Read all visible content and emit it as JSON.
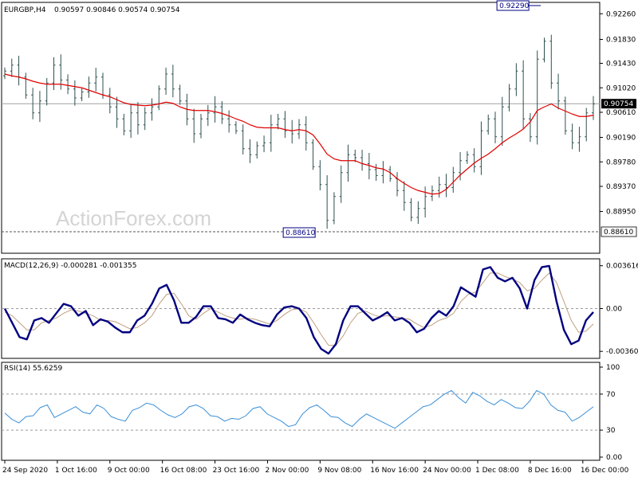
{
  "header": {
    "symbol": "EURGBP,H4",
    "ohlc": "0.90597 0.90846 0.90574 0.90754"
  },
  "watermark": "ActionForex.com",
  "colors": {
    "candle": "#2f4f4f",
    "ma": "#e00000",
    "macd": "#000080",
    "signal": "#c0a080",
    "rsi": "#3a8fd8",
    "guide": "#555555"
  },
  "chart_data": [
    {
      "type": "ohlc",
      "title": "EURGBP,H4",
      "subtitle": "0.90597 0.90846 0.90574 0.90754",
      "ylim": [
        0.8825,
        0.9245
      ],
      "y_ticks": [
        "0.92260",
        "0.91830",
        "0.91430",
        "0.91020",
        "0.90610",
        "0.90190",
        "0.89780",
        "0.89370",
        "0.88950"
      ],
      "y_tick_values": [
        0.9226,
        0.9183,
        0.9143,
        0.9102,
        0.9061,
        0.9019,
        0.8978,
        0.8937,
        0.8895
      ],
      "current_price": "0.90754",
      "current_price_value": 0.90754,
      "low_line": "0.88610",
      "low_line_value": 0.8861,
      "annotations": [
        {
          "text": "0.92290",
          "x_index": 76.5,
          "value": 0.9229
        },
        {
          "text": "0.88610",
          "x_index": 46,
          "value": 0.8861
        }
      ],
      "x_ticks": [
        "24 Sep 2020",
        "1 Oct 16:00",
        "9 Oct 00:00",
        "16 Oct 08:00",
        "23 Oct 16:00",
        "2 Nov 00:00",
        "9 Nov 08:00",
        "16 Nov 16:00",
        "24 Nov 00:00",
        "1 Dec 08:00",
        "8 Dec 16:00",
        "16 Dec 00:00"
      ],
      "x_tick_index": [
        0,
        7.5,
        15,
        22.5,
        30,
        37.5,
        45,
        52.5,
        60,
        67.5,
        75,
        82.5
      ],
      "close": [
        0.913,
        0.914,
        0.912,
        0.909,
        0.906,
        0.908,
        0.911,
        0.914,
        0.9115,
        0.91,
        0.9085,
        0.9095,
        0.911,
        0.912,
        0.909,
        0.907,
        0.905,
        0.903,
        0.906,
        0.904,
        0.906,
        0.907,
        0.91,
        0.9125,
        0.91,
        0.908,
        0.905,
        0.9025,
        0.905,
        0.906,
        0.907,
        0.905,
        0.904,
        0.903,
        0.9,
        0.899,
        0.9005,
        0.901,
        0.904,
        0.905,
        0.903,
        0.9025,
        0.904,
        0.901,
        0.897,
        0.894,
        0.888,
        0.892,
        0.896,
        0.899,
        0.8985,
        0.8975,
        0.8965,
        0.8955,
        0.8965,
        0.895,
        0.893,
        0.891,
        0.8885,
        0.89,
        0.892,
        0.893,
        0.894,
        0.8935,
        0.896,
        0.898,
        0.899,
        0.897,
        0.903,
        0.905,
        0.902,
        0.907,
        0.91,
        0.913,
        0.905,
        0.902,
        0.915,
        0.918,
        0.911,
        0.908,
        0.903,
        0.901,
        0.902,
        0.906,
        0.9075
      ],
      "ma": [
        0.9125,
        0.9122,
        0.912,
        0.9117,
        0.9113,
        0.911,
        0.9108,
        0.9108,
        0.9108,
        0.9106,
        0.9104,
        0.9102,
        0.9098,
        0.9094,
        0.909,
        0.9087,
        0.9082,
        0.9077,
        0.9074,
        0.9073,
        0.9072,
        0.9073,
        0.9075,
        0.9078,
        0.9076,
        0.907,
        0.9066,
        0.9064,
        0.9064,
        0.9064,
        0.9062,
        0.9059,
        0.9055,
        0.905,
        0.9046,
        0.904,
        0.9036,
        0.9035,
        0.9035,
        0.9035,
        0.9032,
        0.903,
        0.9032,
        0.903,
        0.9023,
        0.9008,
        0.8991,
        0.8983,
        0.898,
        0.898,
        0.898,
        0.8975,
        0.8972,
        0.8968,
        0.8966,
        0.896,
        0.895,
        0.8942,
        0.8935,
        0.893,
        0.8927,
        0.8924,
        0.8925,
        0.8932,
        0.8944,
        0.8956,
        0.8966,
        0.8976,
        0.8984,
        0.8991,
        0.9,
        0.901,
        0.9018,
        0.9025,
        0.9033,
        0.9045,
        0.9064,
        0.907,
        0.9075,
        0.9068,
        0.9063,
        0.9058,
        0.9054,
        0.9054,
        0.9056
      ]
    },
    {
      "type": "line",
      "title": "MACD(12,26,9) -0.000281 -0.001355",
      "ylim": [
        -0.0042,
        0.0042
      ],
      "y_ticks": [
        "0.003616",
        "0.00",
        "-0.003609"
      ],
      "y_tick_values": [
        0.003616,
        0.0,
        -0.003609
      ],
      "series": [
        {
          "name": "MACD",
          "values": [
            0.0,
            -0.0012,
            -0.0024,
            -0.0026,
            -0.001,
            -0.0008,
            -0.0012,
            -0.0004,
            0.0004,
            0.0002,
            -0.0006,
            -0.0002,
            -0.0014,
            -0.0009,
            -0.0011,
            -0.0016,
            -0.002,
            -0.002,
            -0.001,
            -0.0006,
            0.0004,
            0.0017,
            0.002,
            0.0007,
            -0.0012,
            -0.0012,
            -0.0007,
            0.0002,
            0.0002,
            -0.0008,
            -0.0009,
            -0.0012,
            -0.0005,
            -0.0009,
            -0.0012,
            -0.0014,
            -0.0015,
            -0.0005,
            0.0001,
            0.0002,
            0.0,
            -0.0008,
            -0.0024,
            -0.0034,
            -0.0038,
            -0.003,
            -0.001,
            0.0002,
            0.0002,
            -0.0004,
            -0.001,
            -0.0007,
            -0.0003,
            -0.001,
            -0.0008,
            -0.0012,
            -0.002,
            -0.0017,
            -0.0008,
            -0.0002,
            -0.0006,
            0.0002,
            0.0018,
            0.0014,
            0.001,
            0.0033,
            0.0035,
            0.0026,
            0.0023,
            0.0026,
            0.0017,
            0.0,
            0.0024,
            0.0035,
            0.0036,
            0.0006,
            -0.0018,
            -0.003,
            -0.0027,
            -0.001,
            -0.0003
          ]
        },
        {
          "name": "Signal",
          "values": [
            -0.0003,
            -0.0006,
            -0.0012,
            -0.0018,
            -0.0018,
            -0.0012,
            -0.001,
            -0.0008,
            -0.0004,
            -0.0001,
            -0.0002,
            -0.0004,
            -0.0006,
            -0.001,
            -0.001,
            -0.0011,
            -0.0014,
            -0.0017,
            -0.0016,
            -0.0012,
            -0.0006,
            0.0004,
            0.0012,
            0.0013,
            0.0004,
            -0.0006,
            -0.0009,
            -0.0004,
            0.0,
            -0.0003,
            -0.0006,
            -0.0008,
            -0.0009,
            -0.0008,
            -0.0009,
            -0.0011,
            -0.0013,
            -0.001,
            -0.0005,
            -0.0001,
            0.0,
            -0.0003,
            -0.0012,
            -0.0022,
            -0.0031,
            -0.0031,
            -0.0023,
            -0.0012,
            -0.0004,
            -0.0002,
            -0.0005,
            -0.0007,
            -0.0006,
            -0.0007,
            -0.0008,
            -0.0009,
            -0.0013,
            -0.0016,
            -0.0014,
            -0.001,
            -0.0008,
            -0.0004,
            0.0006,
            0.0012,
            0.0014,
            0.0022,
            0.003,
            0.003,
            0.0027,
            0.0025,
            0.0022,
            0.0015,
            0.0017,
            0.0024,
            0.003,
            0.0022,
            0.0006,
            -0.001,
            -0.002,
            -0.0019,
            -0.0013
          ]
        }
      ]
    },
    {
      "type": "line",
      "title": "RSI(14) 55.6259",
      "ylim": [
        0,
        100
      ],
      "y_ticks": [
        "100",
        "70",
        "30",
        "0.00"
      ],
      "y_tick_values": [
        100,
        70,
        30,
        0
      ],
      "series": [
        {
          "name": "RSI(14)",
          "values": [
            49,
            42,
            38,
            45,
            46,
            55,
            58,
            44,
            48,
            52,
            56,
            50,
            48,
            58,
            54,
            45,
            42,
            40,
            52,
            55,
            60,
            58,
            52,
            47,
            44,
            48,
            56,
            58,
            54,
            46,
            45,
            40,
            43,
            42,
            46,
            54,
            56,
            48,
            44,
            40,
            34,
            36,
            48,
            55,
            58,
            52,
            45,
            44,
            38,
            34,
            42,
            48,
            44,
            40,
            36,
            32,
            38,
            44,
            50,
            56,
            58,
            64,
            70,
            74,
            66,
            60,
            72,
            68,
            62,
            58,
            64,
            60,
            55,
            54,
            62,
            74,
            70,
            58,
            52,
            50,
            40,
            44,
            50,
            56
          ]
        }
      ]
    }
  ]
}
